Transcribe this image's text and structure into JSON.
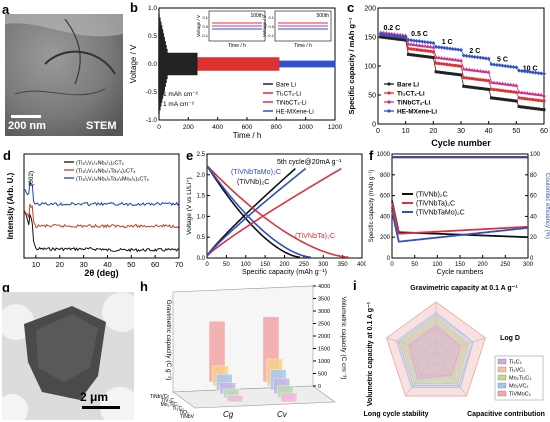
{
  "panels": {
    "a": {
      "label": "a",
      "scale": "200 nm",
      "tag": "STEM"
    },
    "g": {
      "label": "g",
      "scale": "2 μm"
    }
  },
  "chart_data": [
    {
      "id": "b",
      "label": "b",
      "type": "line",
      "xlabel": "Time / h",
      "ylabel": "Voltage / V",
      "xlim": [
        0,
        1200
      ],
      "ylim": [
        -1.0,
        1.0
      ],
      "xticks": [
        0,
        200,
        400,
        600,
        800,
        1000,
        1200
      ],
      "yticks": [
        -1.0,
        -0.5,
        0.0,
        0.5,
        1.0
      ],
      "yticklabels": [
        "-1.0",
        "-0.5",
        "0.0",
        "0.5",
        "1.0"
      ],
      "legend_loc": "lower-right",
      "annotations": [
        "1 mAh cm⁻²",
        "1 mA cm⁻²"
      ],
      "series": [
        {
          "name": "Bare Li",
          "color": "#222222",
          "end": 260,
          "amp": 0.2,
          "spike": 0.7
        },
        {
          "name": "Ti₃CTₓ-Li",
          "color": "#e03030",
          "end": 820,
          "amp": 0.12,
          "spike": 0.55
        },
        {
          "name": "TiNbCTₓ-Li",
          "color": "#d0308a",
          "end": 820,
          "amp": 0.1,
          "spike": 0
        },
        {
          "name": "HE-MXene-Li",
          "color": "#3050d0",
          "end": 1200,
          "amp": 0.06,
          "spike": 0
        }
      ],
      "insets": [
        {
          "title": "100th",
          "xlabel": "Time / h",
          "ylabel": "Voltage / V",
          "yticks": [
            "0.1",
            "0.0",
            "-0.1"
          ]
        },
        {
          "title": "500th",
          "xlabel": "Time / h",
          "ylabel": "Voltage / V",
          "yticks": [
            "0.1",
            "0.0",
            "-0.1"
          ]
        }
      ]
    },
    {
      "id": "c",
      "label": "c",
      "type": "scatter",
      "xlabel": "Cycle number",
      "ylabel": "Specific capacity / mAh g⁻¹",
      "xlim": [
        0,
        60
      ],
      "ylim": [
        0,
        200
      ],
      "xticks": [
        0,
        10,
        20,
        30,
        40,
        50,
        60
      ],
      "yticks": [
        0,
        50,
        100,
        150,
        200
      ],
      "rate_labels": [
        {
          "text": "0.2 C",
          "x": 5,
          "y": 162
        },
        {
          "text": "0.5 C",
          "x": 15,
          "y": 152
        },
        {
          "text": "1 C",
          "x": 25,
          "y": 138
        },
        {
          "text": "2 C",
          "x": 35,
          "y": 122
        },
        {
          "text": "5 C",
          "x": 45,
          "y": 108
        },
        {
          "text": "10 C",
          "x": 55,
          "y": 92
        }
      ],
      "legend_loc": "lower-left",
      "series": [
        {
          "name": "Bare Li",
          "color": "#222222",
          "marker": "square",
          "levels": [
            150,
            120,
            90,
            65,
            45,
            30
          ]
        },
        {
          "name": "Ti₃CTₓ-Li",
          "color": "#e03030",
          "marker": "circle",
          "levels": [
            155,
            130,
            105,
            80,
            60,
            45
          ]
        },
        {
          "name": "TiNbCTₓ-Li",
          "color": "#d0308a",
          "marker": "triangle",
          "levels": [
            158,
            138,
            115,
            95,
            72,
            55
          ]
        },
        {
          "name": "HE-MXene-Li",
          "color": "#3050d0",
          "marker": "diamond",
          "levels": [
            155,
            145,
            133,
            118,
            103,
            92
          ]
        }
      ]
    },
    {
      "id": "d",
      "label": "d",
      "type": "line",
      "xlabel": "2θ (deg)",
      "ylabel": "Intensity (Arb. U.)",
      "xlim": [
        5,
        70
      ],
      "xticks": [
        10,
        20,
        30,
        40,
        50,
        60,
        70
      ],
      "peak_label": "(002)",
      "legend_loc": "top-right",
      "series": [
        {
          "name": "(Ti₁/₃V₁/₃Nb₁/₃)₂CTₓ",
          "color": "#111111",
          "offset": 0
        },
        {
          "name": "(Ti₁/₄V₁/₄Nb₁/₄Ta₁/₄)₂CTₓ",
          "color": "#c04020",
          "offset": 1
        },
        {
          "name": "(Ti₁/₅V₁/₅Nb₁/₅Ta₁/₅Mo₁/₅)₂CTₓ",
          "color": "#2040b0",
          "offset": 2
        }
      ]
    },
    {
      "id": "e",
      "label": "e",
      "type": "line",
      "xlabel": "Specific capacity (mAh g⁻¹)",
      "ylabel": "Voltage (V vs Li/Li⁺)",
      "xlim": [
        0,
        400
      ],
      "ylim": [
        0.0,
        2.5
      ],
      "xticks": [
        0,
        50,
        100,
        150,
        200,
        250,
        300,
        350,
        400
      ],
      "yticks": [
        0.0,
        0.5,
        1.0,
        1.5,
        2.0,
        2.5
      ],
      "yticklabels": [
        "0.0",
        "0.5",
        "1.0",
        "1.5",
        "2.0",
        "2.5"
      ],
      "title": "5th cycle@20mA g⁻¹",
      "series": [
        {
          "name": "(TiVNb)₂C",
          "color": "#111111",
          "capacity": 240
        },
        {
          "name": "(TiVNbTa)₂C",
          "color": "#e03040",
          "capacity": 365
        },
        {
          "name": "(TiVNbTaMo)₂C",
          "color": "#3050c0",
          "capacity": 268
        }
      ]
    },
    {
      "id": "f",
      "label": "f",
      "type": "line",
      "xlabel": "Cycle numbers",
      "ylabel": "Specific capacity (mAh g⁻¹)",
      "y2label": "Coulombic efficiency (%)",
      "xlim": [
        0,
        300
      ],
      "ylim": [
        0,
        1000
      ],
      "y2lim": [
        0,
        100
      ],
      "xticks": [
        0,
        50,
        100,
        150,
        200,
        250,
        300
      ],
      "yticks": [
        0,
        200,
        400,
        600,
        800,
        1000
      ],
      "y2ticks": [
        0,
        20,
        40,
        60,
        80,
        100
      ],
      "legend_loc": "center-left",
      "series": [
        {
          "name": "(TiVNb)₂C",
          "color": "#111111",
          "start": 250,
          "end": 200
        },
        {
          "name": "(TiVNbTa)₂C",
          "color": "#e03040",
          "start": 230,
          "end": 300
        },
        {
          "name": "(TiVNbTaMo)₂C",
          "color": "#3050c0",
          "start": 150,
          "end": 290
        }
      ]
    },
    {
      "id": "h",
      "label": "h",
      "type": "bar",
      "ylabel_left": "Gravimetric capacity (C g⁻¹)",
      "ylabel_right": "Volumetric capacity (C cm⁻³)",
      "y2ticks": [
        0,
        500,
        1000,
        1500,
        2000,
        2500,
        3000,
        3500,
        4000
      ],
      "groups": [
        "C_g",
        "C_v"
      ],
      "group_labels": [
        "Cg",
        "Cv"
      ],
      "categories": [
        "TiNbVCr",
        "TiV₂C",
        "Mo₂TiC₂",
        "Ti₃C₂",
        "TiO₂",
        "TiNbV"
      ],
      "colors": [
        "#f4a6a6",
        "#f7d38a",
        "#a9c7f2",
        "#c9b6e6",
        "#b8e0b0",
        "#f2b7d9"
      ],
      "values_Cg": [
        2700,
        900,
        700,
        500,
        400,
        300
      ],
      "values_Cv": [
        2900,
        1200,
        900,
        700,
        550,
        400
      ]
    },
    {
      "id": "i",
      "label": "i",
      "type": "radar",
      "axes": [
        "Gravimetric capacity at 0.1 A g⁻¹",
        "Log D",
        "Capacitive contribution",
        "Long  cycle stability",
        "Volumetric capacity at 0.1 A g⁻¹"
      ],
      "legend_loc": "right",
      "series": [
        {
          "name": "Ti₃C₂",
          "color": "#d6a8e8",
          "values": [
            0.55,
            0.5,
            0.5,
            0.6,
            0.55
          ]
        },
        {
          "name": "Ti₂VC₂",
          "color": "#f2c6a0",
          "values": [
            0.6,
            0.6,
            0.55,
            0.55,
            0.65
          ]
        },
        {
          "name": "Mo₂Ti₂C₃",
          "color": "#c8d88a",
          "values": [
            0.7,
            0.65,
            0.7,
            0.7,
            0.7
          ]
        },
        {
          "name": "Mo₂VC₂",
          "color": "#a9c4ee",
          "values": [
            0.8,
            0.75,
            0.8,
            0.8,
            0.8
          ]
        },
        {
          "name": "TiVMoC₂",
          "color": "#f0a8a8",
          "values": [
            1.0,
            1.0,
            1.0,
            1.0,
            1.0
          ]
        }
      ]
    }
  ]
}
